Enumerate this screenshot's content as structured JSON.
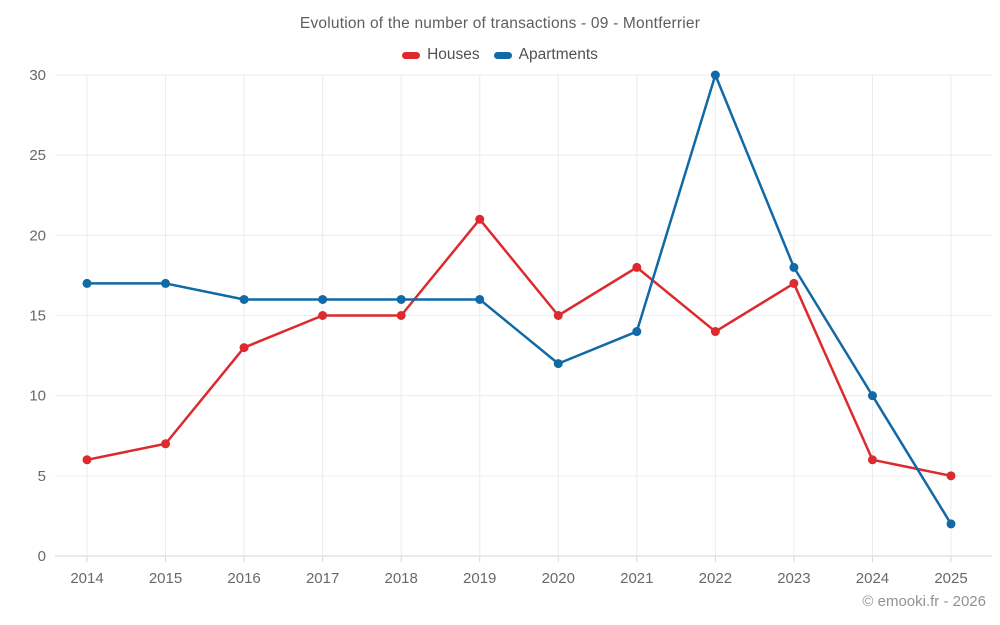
{
  "header": {
    "title": "Evolution of the number of transactions - 09 - Montferrier"
  },
  "footer": {
    "watermark": "© emooki.fr - 2026"
  },
  "colors": {
    "houses": "#dc2a2f",
    "apartments": "#1169a6",
    "gridline": "#ececec",
    "axis_line": "#d6d6d6",
    "tick_label": "#66696c"
  },
  "chart_data": {
    "type": "line",
    "title": "Evolution of the number of transactions - 09 - Montferrier",
    "categories": [
      "2014",
      "2015",
      "2016",
      "2017",
      "2018",
      "2019",
      "2020",
      "2021",
      "2022",
      "2023",
      "2024",
      "2025"
    ],
    "series": [
      {
        "name": "Houses",
        "color": "#dc2a2f",
        "values": [
          6,
          7,
          13,
          15,
          15,
          21,
          15,
          18,
          14,
          17,
          6,
          5
        ]
      },
      {
        "name": "Apartments",
        "color": "#1169a6",
        "values": [
          17,
          17,
          16,
          16,
          16,
          16,
          12,
          14,
          30,
          18,
          10,
          2
        ]
      }
    ],
    "xlabel": "",
    "ylabel": "",
    "ylim": [
      0,
      30
    ],
    "yticks": [
      0,
      5,
      10,
      15,
      20,
      25,
      30
    ],
    "grid": true,
    "legend_position": "top",
    "markers": true
  }
}
